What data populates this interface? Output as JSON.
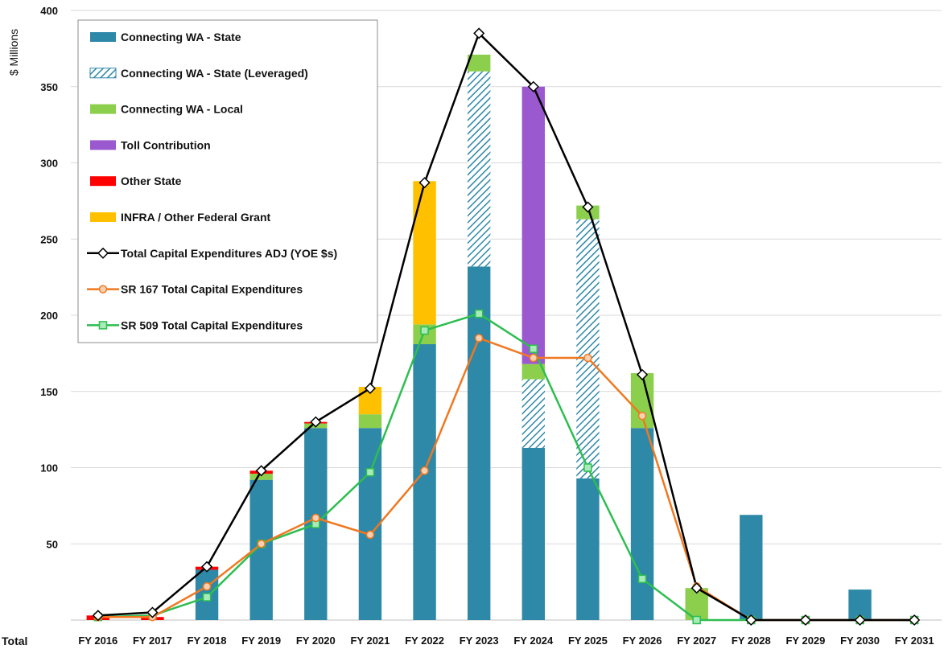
{
  "chart_data": {
    "type": "bar",
    "stacked": true,
    "ylabel": "$ Millions",
    "xlabel_left": "Total",
    "ylim": [
      0,
      400
    ],
    "yticks": [
      50,
      100,
      150,
      200,
      250,
      300,
      350,
      400
    ],
    "grid": true,
    "legend_position": "top-left",
    "categories": [
      "FY 2016",
      "FY 2017",
      "FY 2018",
      "FY 2019",
      "FY 2020",
      "FY 2021",
      "FY 2022",
      "FY 2023",
      "FY 2024",
      "FY 2025",
      "FY 2026",
      "FY 2027",
      "FY 2028",
      "FY 2029",
      "FY 2030",
      "FY 2031"
    ],
    "series": [
      {
        "name": "Connecting WA - State",
        "kind": "bar",
        "color": "#2E88A8",
        "pattern": "solid",
        "values": [
          0,
          0,
          33,
          92,
          126,
          126,
          181,
          232,
          113,
          93,
          126,
          0,
          69,
          0,
          20,
          0
        ]
      },
      {
        "name": "Connecting WA - State (Leveraged)",
        "kind": "bar",
        "color": "#2E88A8",
        "pattern": "hatch",
        "values": [
          0,
          0,
          0,
          0,
          0,
          0,
          0,
          128,
          45,
          170,
          0,
          0,
          0,
          0,
          0,
          0
        ]
      },
      {
        "name": "Connecting WA - Local",
        "kind": "bar",
        "color": "#8CCF4D",
        "pattern": "solid",
        "values": [
          0,
          0,
          0,
          4,
          3,
          9,
          13,
          11,
          10,
          9,
          36,
          21,
          0,
          0,
          0,
          0
        ]
      },
      {
        "name": "Toll Contribution",
        "kind": "bar",
        "color": "#9B59D0",
        "pattern": "solid",
        "values": [
          0,
          0,
          0,
          0,
          0,
          0,
          0,
          0,
          182,
          0,
          0,
          0,
          0,
          0,
          0,
          0
        ]
      },
      {
        "name": "Other State",
        "kind": "bar",
        "color": "#FF0000",
        "pattern": "solid",
        "values": [
          3,
          2,
          2,
          2,
          1,
          0,
          0,
          0,
          0,
          0,
          0,
          0,
          0,
          0,
          0,
          0
        ]
      },
      {
        "name": "INFRA / Other Federal Grant",
        "kind": "bar",
        "color": "#FFC000",
        "pattern": "solid",
        "values": [
          0,
          0,
          0,
          0,
          0,
          18,
          94,
          0,
          0,
          0,
          0,
          0,
          0,
          0,
          0,
          0
        ]
      },
      {
        "name": "Total Capital Expenditures ADJ (YOE $s)",
        "kind": "line",
        "color": "#000000",
        "marker": "diamond",
        "values": [
          3,
          5,
          35,
          98,
          130,
          152,
          287,
          385,
          350,
          271,
          161,
          21,
          0,
          0,
          0,
          0
        ]
      },
      {
        "name": "SR 167 Total Capital Expenditures",
        "kind": "line",
        "color": "#F07820",
        "marker": "circle",
        "values": [
          2,
          2,
          22,
          50,
          67,
          56,
          98,
          185,
          172,
          172,
          134,
          22,
          0,
          0,
          0,
          0
        ]
      },
      {
        "name": "SR 509 Total Capital Expenditures",
        "kind": "line",
        "color": "#2DBE50",
        "marker": "square",
        "values": [
          2,
          3,
          15,
          50,
          63,
          97,
          190,
          201,
          178,
          100,
          27,
          0,
          0,
          0,
          0,
          0
        ]
      }
    ]
  }
}
